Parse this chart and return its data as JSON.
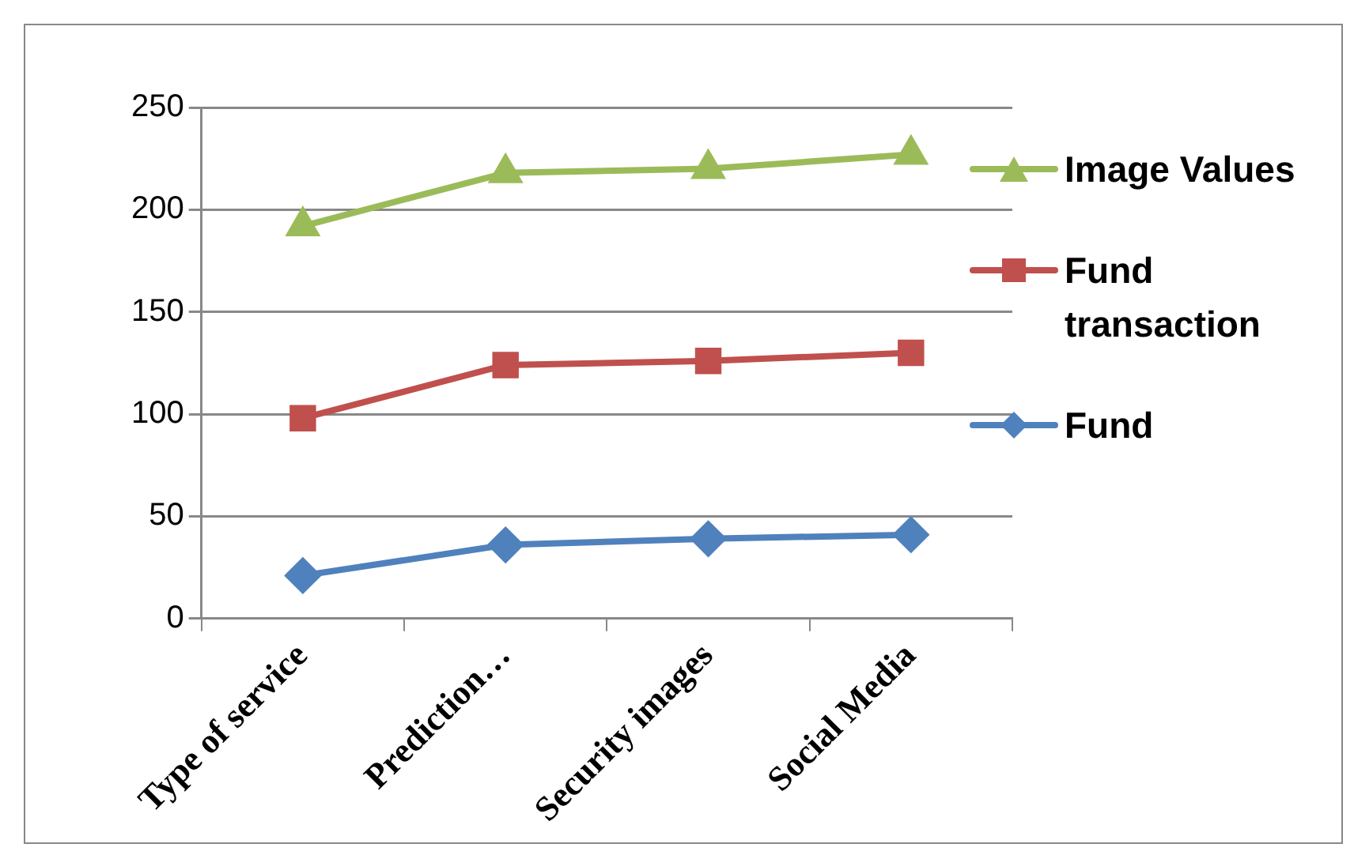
{
  "chart_data": {
    "type": "line",
    "categories": [
      "Type of service",
      "Prediction…",
      "Security images",
      "Social Media"
    ],
    "series": [
      {
        "name": "Image Values",
        "color": "#9bbb59",
        "marker": "triangle",
        "values": [
          192,
          218,
          220,
          227
        ]
      },
      {
        "name": "Fund transaction",
        "color": "#c0504d",
        "marker": "square",
        "values": [
          98,
          124,
          126,
          130
        ]
      },
      {
        "name": "Fund",
        "color": "#4f81bd",
        "marker": "diamond",
        "values": [
          21,
          36,
          39,
          41
        ]
      }
    ],
    "ylim": [
      0,
      250
    ],
    "yticks": [
      0,
      50,
      100,
      150,
      200,
      250
    ],
    "grid": "y",
    "legend": "right"
  }
}
